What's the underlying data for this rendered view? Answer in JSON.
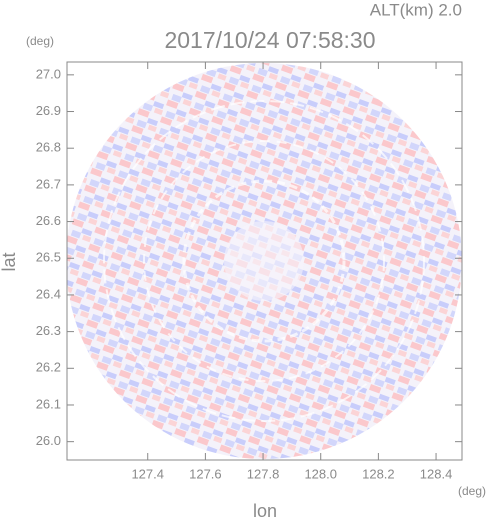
{
  "chart_data": {
    "type": "radar-ppi",
    "title": "2017/10/24 07:58:30",
    "annotation": "ALT(km) 2.0",
    "x_label": "lon",
    "y_label": "lat",
    "x_unit": "(deg)",
    "y_unit": "(deg)",
    "xlim": [
      127.12,
      128.49
    ],
    "ylim": [
      25.95,
      27.035
    ],
    "xticks": [
      127.4,
      127.6,
      127.8,
      {
        "value": 128.0,
        "label": "128.0"
      },
      128.2,
      128.4
    ],
    "yticks": [
      {
        "value": 26.0,
        "label": "26.0"
      },
      26.1,
      26.2,
      26.3,
      26.4,
      26.5,
      26.6,
      26.7,
      26.8,
      26.9,
      {
        "value": 27.0,
        "label": "27.0"
      }
    ]
  }
}
